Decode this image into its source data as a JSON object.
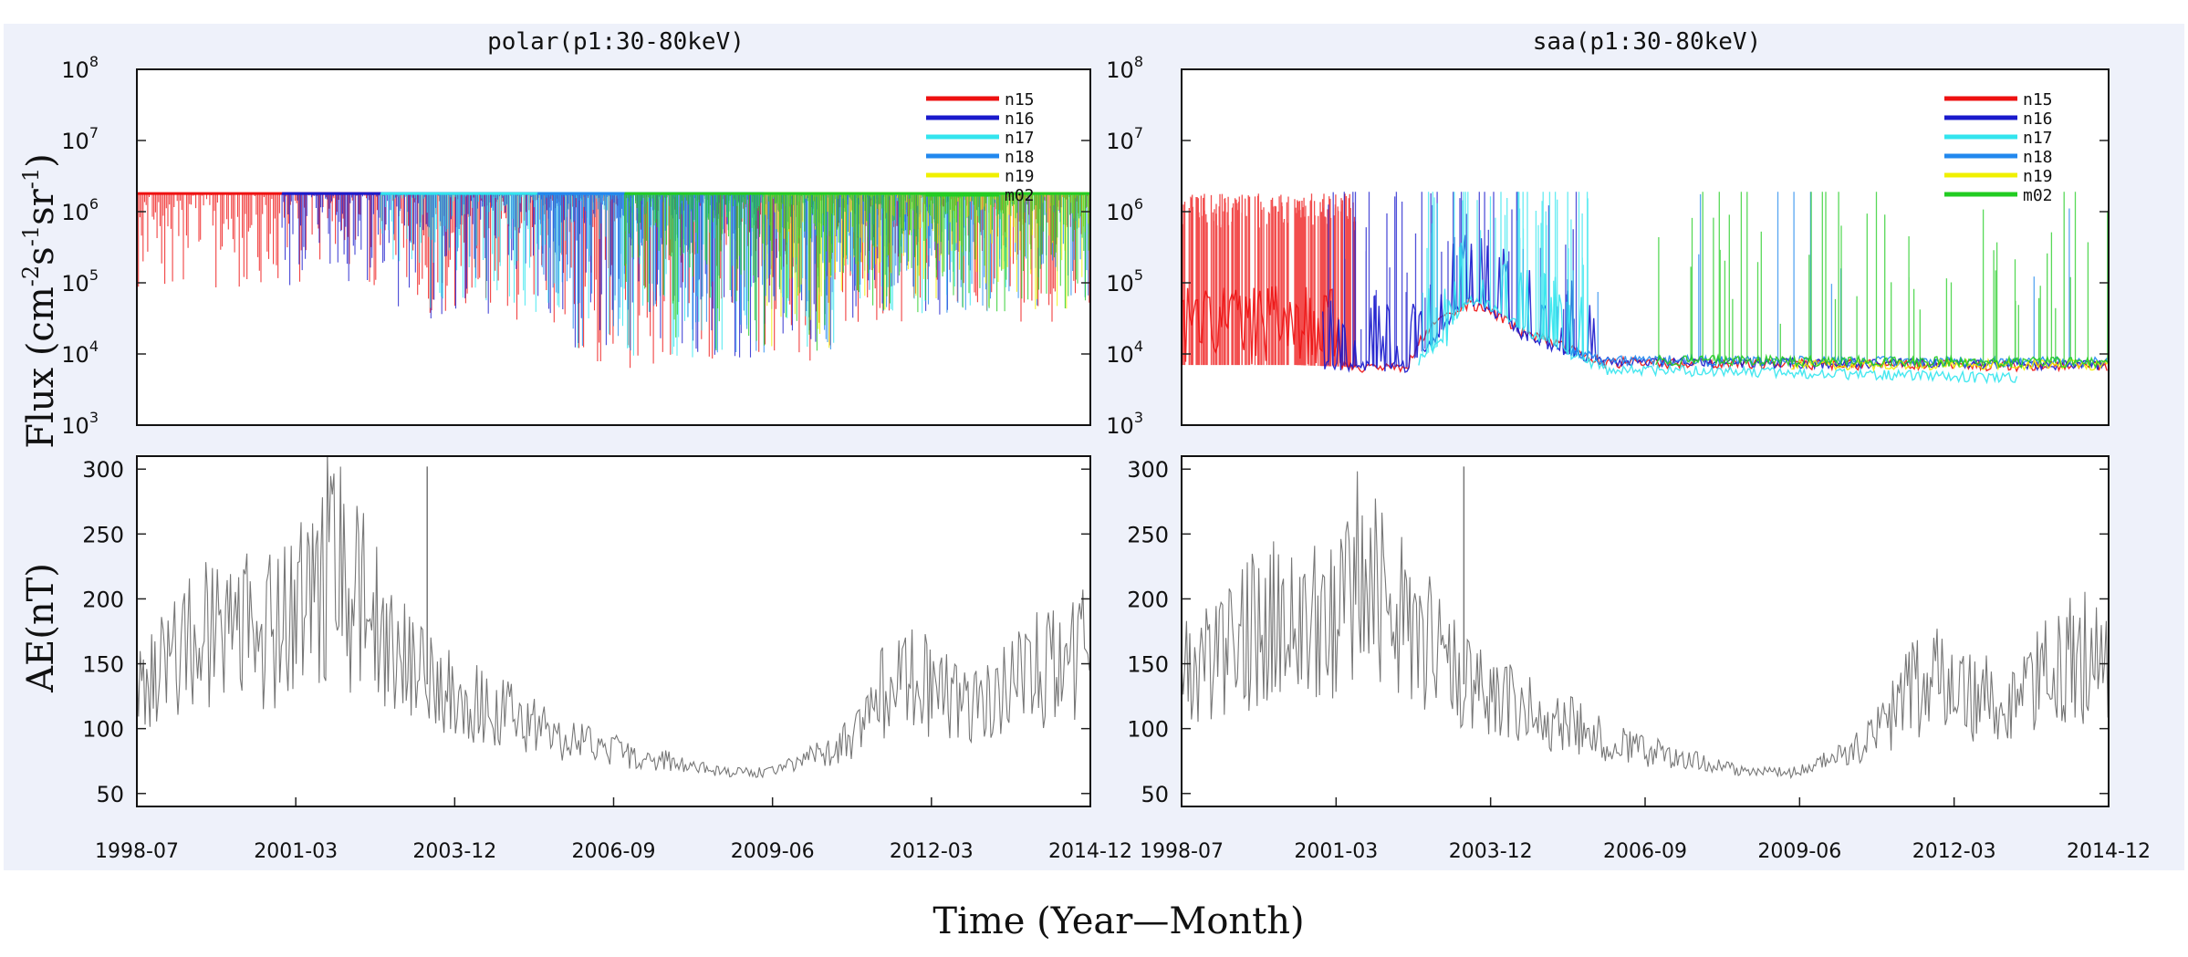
{
  "figure": {
    "panel_background": "#eef1fa",
    "figure_background": "#ffffff",
    "y_label_flux": "Flux (cm",
    "y_label_flux_sup1": "-2",
    "y_label_flux_mid1": "s",
    "y_label_flux_sup2": "-1",
    "y_label_flux_mid2": "sr",
    "y_label_flux_sup3": "-1",
    "y_label_flux_end": ")",
    "y_label_ae": "AE(nT)",
    "x_label": "Time (Year—Month)"
  },
  "chart_data": [
    {
      "id": "polar-flux",
      "type": "line",
      "title": "polar(p1:30-80keV)",
      "yscale": "log",
      "ylim": [
        1000,
        100000000
      ],
      "y_ticks": [
        {
          "base": "10",
          "exp": "3"
        },
        {
          "base": "10",
          "exp": "4"
        },
        {
          "base": "10",
          "exp": "5"
        },
        {
          "base": "10",
          "exp": "6"
        },
        {
          "base": "10",
          "exp": "7"
        },
        {
          "base": "10",
          "exp": "8"
        }
      ],
      "xlim": [
        1998.5,
        2014.92
      ],
      "legend_position": "top-right",
      "series": [
        {
          "name": "n15",
          "color": "#ee1111",
          "start": 1998.5,
          "end": 2014.92,
          "pattern": "cap",
          "cap": 1800000,
          "low": 6000,
          "activity": "polar"
        },
        {
          "name": "n16",
          "color": "#1a1acc",
          "start": 2001.0,
          "end": 2012.5,
          "pattern": "cap",
          "cap": 1800000,
          "low": 8000,
          "activity": "polar"
        },
        {
          "name": "n17",
          "color": "#33e5ee",
          "start": 2002.7,
          "end": 2013.5,
          "pattern": "cap",
          "cap": 1800000,
          "low": 9000,
          "activity": "polar"
        },
        {
          "name": "n18",
          "color": "#2288ee",
          "start": 2005.4,
          "end": 2014.92,
          "pattern": "cap",
          "cap": 1800000,
          "low": 9000,
          "activity": "polar"
        },
        {
          "name": "n19",
          "color": "#f0f000",
          "start": 2009.3,
          "end": 2014.92,
          "pattern": "cap",
          "cap": 1800000,
          "low": 12000,
          "activity": "polar"
        },
        {
          "name": "m02",
          "color": "#22cc22",
          "start": 2006.9,
          "end": 2014.92,
          "pattern": "cap",
          "cap": 1800000,
          "low": 10000,
          "activity": "polar"
        }
      ]
    },
    {
      "id": "saa-flux",
      "type": "line",
      "title": "saa(p1:30-80keV)",
      "yscale": "log",
      "ylim": [
        1000,
        100000000
      ],
      "y_ticks": [
        {
          "base": "10",
          "exp": "3"
        },
        {
          "base": "10",
          "exp": "4"
        },
        {
          "base": "10",
          "exp": "5"
        },
        {
          "base": "10",
          "exp": "6"
        },
        {
          "base": "10",
          "exp": "7"
        },
        {
          "base": "10",
          "exp": "8"
        }
      ],
      "xlim": [
        1998.5,
        2014.92
      ],
      "legend_position": "top-right",
      "series": [
        {
          "name": "n15",
          "color": "#ee1111",
          "start": 1998.5,
          "end": 2014.92,
          "pattern": "base",
          "base_values": [
            [
              1998.5,
              7000
            ],
            [
              2000.5,
              7000
            ],
            [
              2001.6,
              6500
            ],
            [
              2002.5,
              6000
            ],
            [
              2003.6,
              50000
            ],
            [
              2004.5,
              20000
            ],
            [
              2005.3,
              12000
            ],
            [
              2006.0,
              7500
            ],
            [
              2014.92,
              6500
            ]
          ],
          "spikes": "early"
        },
        {
          "name": "n16",
          "color": "#1a1acc",
          "start": 2001.0,
          "end": 2014.92,
          "pattern": "base",
          "base_values": [
            [
              2001.0,
              7000
            ],
            [
              2002.5,
              6500
            ],
            [
              2003.0,
              15000
            ],
            [
              2003.6,
              55000
            ],
            [
              2004.5,
              18000
            ],
            [
              2005.3,
              10000
            ],
            [
              2006.0,
              7500
            ],
            [
              2014.92,
              7000
            ]
          ],
          "spikes": "mid"
        },
        {
          "name": "n17",
          "color": "#33e5ee",
          "start": 2002.7,
          "end": 2013.3,
          "pattern": "base",
          "base_values": [
            [
              2002.7,
              8000
            ],
            [
              2003.2,
              15000
            ],
            [
              2003.6,
              60000
            ],
            [
              2004.5,
              22000
            ],
            [
              2005.3,
              10000
            ],
            [
              2006.0,
              6000
            ],
            [
              2013.3,
              4500
            ]
          ],
          "spikes": "mid"
        },
        {
          "name": "n18",
          "color": "#2288ee",
          "start": 2005.4,
          "end": 2014.92,
          "pattern": "base",
          "base_values": [
            [
              2005.4,
              11000
            ],
            [
              2006.0,
              8000
            ],
            [
              2014.92,
              7500
            ]
          ],
          "spikes": "few"
        },
        {
          "name": "n19",
          "color": "#f0f000",
          "start": 2009.3,
          "end": 2014.92,
          "pattern": "base",
          "base_values": [
            [
              2009.3,
              7000
            ],
            [
              2014.92,
              7000
            ]
          ],
          "spikes": "none"
        },
        {
          "name": "m02",
          "color": "#22cc22",
          "start": 2006.9,
          "end": 2014.92,
          "pattern": "base",
          "base_values": [
            [
              2006.9,
              8000
            ],
            [
              2014.92,
              7500
            ]
          ],
          "spikes": "late"
        }
      ]
    },
    {
      "id": "polar-ae",
      "type": "line",
      "title": "",
      "ylabel": "AE(nT)",
      "ylim": [
        40,
        310
      ],
      "y_ticks": [
        "50",
        "100",
        "150",
        "200",
        "250",
        "300"
      ],
      "xlim": [
        1998.5,
        2014.92
      ],
      "x_ticks": [
        "1998-07",
        "2001-03",
        "2003-12",
        "2006-09",
        "2009-06",
        "2012-03",
        "2014-12"
      ],
      "series": [
        {
          "name": "AE",
          "color": "#777777",
          "trend": [
            [
              1998.5,
              145
            ],
            [
              1999.3,
              165
            ],
            [
              2000.0,
              180
            ],
            [
              2000.7,
              175
            ],
            [
              2001.3,
              195
            ],
            [
              2001.8,
              230
            ],
            [
              2002.3,
              200
            ],
            [
              2003.0,
              155
            ],
            [
              2003.6,
              130
            ],
            [
              2004.5,
              115
            ],
            [
              2005.3,
              105
            ],
            [
              2006.0,
              90
            ],
            [
              2007.0,
              80
            ],
            [
              2007.8,
              74
            ],
            [
              2008.5,
              67
            ],
            [
              2009.3,
              66
            ],
            [
              2009.7,
              72
            ],
            [
              2010.3,
              80
            ],
            [
              2010.8,
              95
            ],
            [
              2011.3,
              125
            ],
            [
              2011.8,
              140
            ],
            [
              2012.5,
              125
            ],
            [
              2013.2,
              120
            ],
            [
              2013.8,
              140
            ],
            [
              2014.4,
              155
            ],
            [
              2014.92,
              165
            ]
          ],
          "spike": {
            "x": 2003.5,
            "y": 302
          }
        }
      ]
    },
    {
      "id": "saa-ae",
      "type": "line",
      "title": "",
      "ylabel": "AE(nT)",
      "ylim": [
        40,
        310
      ],
      "y_ticks": [
        "50",
        "100",
        "150",
        "200",
        "250",
        "300"
      ],
      "xlim": [
        1998.5,
        2014.92
      ],
      "x_ticks": [
        "1998-07",
        "2001-03",
        "2003-12",
        "2006-09",
        "2009-06",
        "2012-03",
        "2014-12"
      ],
      "series": [
        {
          "name": "AE",
          "color": "#777777",
          "trend": [
            [
              1998.5,
              145
            ],
            [
              1999.3,
              165
            ],
            [
              2000.0,
              180
            ],
            [
              2000.7,
              175
            ],
            [
              2001.3,
              195
            ],
            [
              2001.8,
              230
            ],
            [
              2002.3,
              200
            ],
            [
              2003.0,
              155
            ],
            [
              2003.6,
              130
            ],
            [
              2004.5,
              115
            ],
            [
              2005.3,
              105
            ],
            [
              2006.0,
              90
            ],
            [
              2007.0,
              80
            ],
            [
              2007.8,
              74
            ],
            [
              2008.5,
              67
            ],
            [
              2009.3,
              66
            ],
            [
              2009.7,
              72
            ],
            [
              2010.3,
              80
            ],
            [
              2010.8,
              95
            ],
            [
              2011.3,
              125
            ],
            [
              2011.8,
              140
            ],
            [
              2012.5,
              125
            ],
            [
              2013.2,
              120
            ],
            [
              2013.8,
              140
            ],
            [
              2014.4,
              155
            ],
            [
              2014.92,
              165
            ]
          ],
          "spike": {
            "x": 2003.5,
            "y": 302
          }
        }
      ]
    }
  ]
}
